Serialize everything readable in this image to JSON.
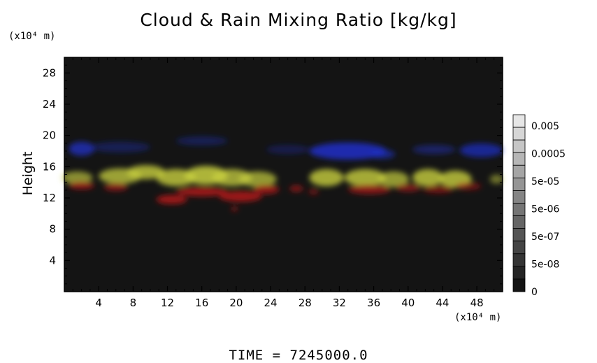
{
  "chart_data": {
    "type": "heatmap",
    "title": "Cloud & Rain Mixing Ratio [kg/kg]",
    "ylabel": "Height",
    "y_unit": "(x10⁴ m)",
    "x_unit": "(x10⁴ m)",
    "xlim": [
      0,
      51
    ],
    "ylim": [
      0,
      30
    ],
    "x_ticks": [
      "4",
      "8",
      "12",
      "16",
      "20",
      "24",
      "28",
      "32",
      "36",
      "40",
      "44",
      "48"
    ],
    "y_ticks": [
      "4",
      "8",
      "12",
      "16",
      "20",
      "24",
      "28"
    ],
    "x_tick_values": [
      4,
      8,
      12,
      16,
      20,
      24,
      28,
      32,
      36,
      40,
      44,
      48
    ],
    "y_tick_values": [
      4,
      8,
      12,
      16,
      20,
      24,
      28
    ],
    "background_color": "#141414",
    "colorbar": {
      "labels": [
        "0.005",
        "0.0005",
        "5e-05",
        "5e-06",
        "5e-07",
        "5e-08",
        "0"
      ]
    },
    "layers": [
      {
        "color": "#2030c8",
        "description_y_range": [
          16.5,
          19.5
        ]
      },
      {
        "color": "#c8d040",
        "description_y_range": [
          12.5,
          16.3
        ]
      },
      {
        "color": "#b01818",
        "description_y_range": [
          11,
          14
        ]
      }
    ],
    "blobs": [
      {
        "x": 2,
        "y": 18.3,
        "rx": 1.5,
        "ry": 0.9,
        "c": 0,
        "o": 0.75
      },
      {
        "x": 6.5,
        "y": 18.5,
        "rx": 3.5,
        "ry": 0.7,
        "c": 0,
        "o": 0.35
      },
      {
        "x": 16,
        "y": 19.3,
        "rx": 3,
        "ry": 0.6,
        "c": 0,
        "o": 0.35
      },
      {
        "x": 26,
        "y": 18.2,
        "rx": 2.5,
        "ry": 0.6,
        "c": 0,
        "o": 0.3
      },
      {
        "x": 33,
        "y": 18.0,
        "rx": 4.5,
        "ry": 1.1,
        "c": 0,
        "o": 0.85
      },
      {
        "x": 37,
        "y": 17.6,
        "rx": 1.5,
        "ry": 0.6,
        "c": 0,
        "o": 0.6
      },
      {
        "x": 43,
        "y": 18.2,
        "rx": 2.5,
        "ry": 0.6,
        "c": 0,
        "o": 0.45
      },
      {
        "x": 48.5,
        "y": 18.1,
        "rx": 2.5,
        "ry": 0.9,
        "c": 0,
        "o": 0.7
      },
      {
        "x": 1.5,
        "y": 14.6,
        "rx": 1.8,
        "ry": 0.8,
        "c": 1,
        "o": 0.65
      },
      {
        "x": 6.5,
        "y": 14.8,
        "rx": 2.5,
        "ry": 1.0,
        "c": 1,
        "o": 0.75
      },
      {
        "x": 9.5,
        "y": 15.3,
        "rx": 2.2,
        "ry": 0.9,
        "c": 1,
        "o": 0.8
      },
      {
        "x": 13,
        "y": 14.6,
        "rx": 2.3,
        "ry": 1.1,
        "c": 1,
        "o": 0.8
      },
      {
        "x": 16.5,
        "y": 14.9,
        "rx": 2.5,
        "ry": 1.2,
        "c": 1,
        "o": 0.85
      },
      {
        "x": 19.5,
        "y": 14.6,
        "rx": 2.3,
        "ry": 1.1,
        "c": 1,
        "o": 0.75
      },
      {
        "x": 22.5,
        "y": 14.4,
        "rx": 2.2,
        "ry": 1.0,
        "c": 1,
        "o": 0.7
      },
      {
        "x": 30.5,
        "y": 14.6,
        "rx": 2.0,
        "ry": 1.1,
        "c": 1,
        "o": 0.8
      },
      {
        "x": 35,
        "y": 14.6,
        "rx": 2.4,
        "ry": 1.1,
        "c": 1,
        "o": 0.8
      },
      {
        "x": 38.3,
        "y": 14.4,
        "rx": 1.8,
        "ry": 1.0,
        "c": 1,
        "o": 0.7
      },
      {
        "x": 42.3,
        "y": 14.6,
        "rx": 1.8,
        "ry": 1.1,
        "c": 1,
        "o": 0.8
      },
      {
        "x": 45.5,
        "y": 14.4,
        "rx": 1.9,
        "ry": 1.1,
        "c": 1,
        "o": 0.8
      },
      {
        "x": 50.3,
        "y": 14.4,
        "rx": 0.8,
        "ry": 0.6,
        "c": 1,
        "o": 0.5
      },
      {
        "x": 2,
        "y": 13.6,
        "rx": 1.5,
        "ry": 0.5,
        "c": 2,
        "o": 0.75
      },
      {
        "x": 6,
        "y": 13.4,
        "rx": 1.4,
        "ry": 0.5,
        "c": 2,
        "o": 0.7
      },
      {
        "x": 12.5,
        "y": 11.8,
        "rx": 1.8,
        "ry": 0.6,
        "c": 2,
        "o": 0.85
      },
      {
        "x": 16,
        "y": 12.8,
        "rx": 3,
        "ry": 0.6,
        "c": 2,
        "o": 0.85
      },
      {
        "x": 20.5,
        "y": 12.2,
        "rx": 2.5,
        "ry": 0.7,
        "c": 2,
        "o": 0.85
      },
      {
        "x": 23.5,
        "y": 13.1,
        "rx": 1.5,
        "ry": 0.6,
        "c": 2,
        "o": 0.8
      },
      {
        "x": 27,
        "y": 13.2,
        "rx": 0.8,
        "ry": 0.4,
        "c": 2,
        "o": 0.7
      },
      {
        "x": 29,
        "y": 12.8,
        "rx": 0.6,
        "ry": 0.4,
        "c": 2,
        "o": 0.55
      },
      {
        "x": 19.8,
        "y": 10.6,
        "rx": 0.4,
        "ry": 0.3,
        "c": 2,
        "o": 0.7
      },
      {
        "x": 35.5,
        "y": 13.1,
        "rx": 2.5,
        "ry": 0.6,
        "c": 2,
        "o": 0.75
      },
      {
        "x": 40,
        "y": 13.3,
        "rx": 1.5,
        "ry": 0.5,
        "c": 2,
        "o": 0.65
      },
      {
        "x": 43.5,
        "y": 13.1,
        "rx": 1.8,
        "ry": 0.5,
        "c": 2,
        "o": 0.6
      },
      {
        "x": 47,
        "y": 13.5,
        "rx": 1.5,
        "ry": 0.5,
        "c": 2,
        "o": 0.55
      }
    ]
  },
  "footer": {
    "time_label": "TIME = 7245000.0"
  }
}
